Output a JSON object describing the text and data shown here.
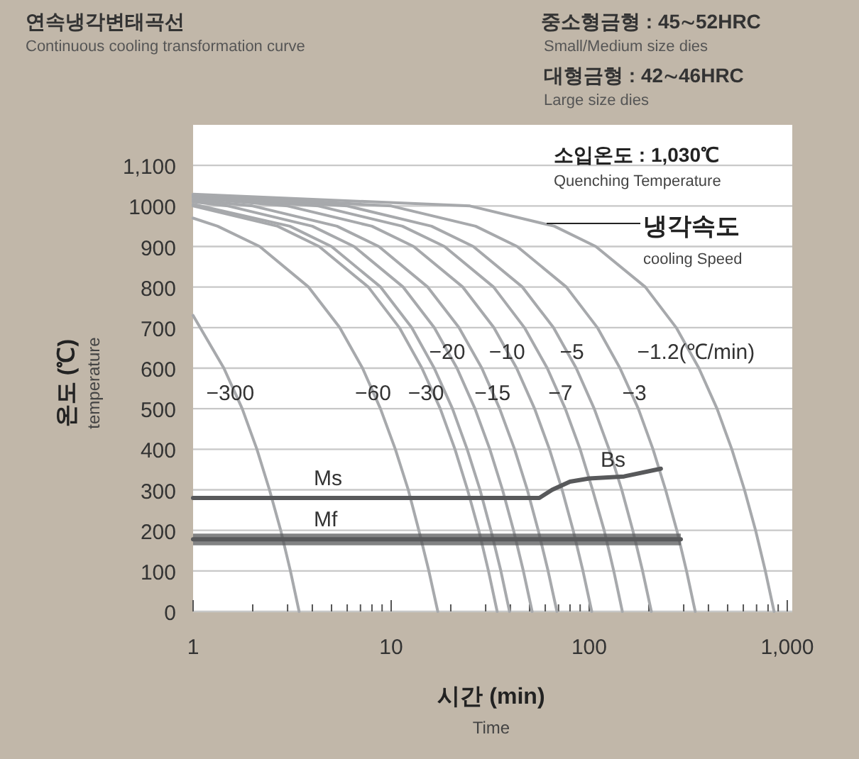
{
  "chart_data": {
    "type": "line",
    "title": "연속냉각변태곡선",
    "subtitle": "Continuous cooling transformation curve",
    "xlabel": "시간 (min)",
    "ylabel": "온도 (℃)",
    "log": "x",
    "grid": "y",
    "marker": "none",
    "line_style": "solid",
    "xlim": [
      1,
      1060
    ],
    "ylim": [
      0,
      1200
    ],
    "xticks": [
      1,
      {
        "value": 2,
        "label": null
      },
      {
        "value": 3,
        "label": null
      },
      {
        "value": 4,
        "label": null
      },
      {
        "value": 5,
        "label": null
      },
      {
        "value": 6,
        "label": null
      },
      {
        "value": 7,
        "label": null
      },
      {
        "value": 8,
        "label": null
      },
      {
        "value": 9,
        "label": null
      },
      10,
      {
        "value": 20,
        "label": null
      },
      {
        "value": 30,
        "label": null
      },
      {
        "value": 40,
        "label": null
      },
      {
        "value": 50,
        "label": null
      },
      {
        "value": 60,
        "label": null
      },
      {
        "value": 70,
        "label": null
      },
      {
        "value": 80,
        "label": null
      },
      {
        "value": 90,
        "label": null
      },
      100,
      {
        "value": 200,
        "label": null
      },
      {
        "value": 300,
        "label": null
      },
      {
        "value": 400,
        "label": null
      },
      {
        "value": 500,
        "label": null
      },
      {
        "value": 600,
        "label": null
      },
      {
        "value": 700,
        "label": null
      },
      {
        "value": 800,
        "label": null
      },
      {
        "value": 900,
        "label": null
      },
      {
        "value": 1000,
        "label": "1,000"
      }
    ],
    "yticks": [
      0,
      100,
      200,
      300,
      400,
      500,
      600,
      700,
      800,
      900,
      1000,
      {
        "value": 1100,
        "label": "1,100"
      }
    ],
    "series": [
      {
        "color": "#a7a9ac",
        "x": [
          1,
          1.43,
          1.77,
          2.1,
          2.43,
          2.77,
          3.1,
          3.43
        ],
        "values": [
          730,
          600,
          500,
          400,
          300,
          200,
          100,
          0
        ]
      },
      {
        "color": "#a7a9ac",
        "x": [
          1,
          1.33,
          2.17,
          3.83,
          5.5,
          7.17,
          8.83,
          10.5,
          12.2,
          13.8,
          15.5,
          17.2
        ],
        "values": [
          970,
          950,
          900,
          800,
          700,
          600,
          500,
          400,
          300,
          200,
          100,
          0
        ]
      },
      {
        "color": "#a7a9ac",
        "x": [
          1,
          2.67,
          4.33,
          7.67,
          11,
          14.3,
          17.7,
          21,
          24.3,
          27.7,
          31,
          34.3
        ],
        "values": [
          1000,
          950,
          900,
          800,
          700,
          600,
          500,
          400,
          300,
          200,
          100,
          0
        ]
      },
      {
        "color": "#a7a9ac",
        "x": [
          1,
          3.08,
          5,
          8.85,
          12.7,
          16.5,
          20.4,
          24.2,
          28.1,
          31.9,
          35.8,
          39.6
        ],
        "values": [
          1004,
          950,
          900,
          800,
          700,
          600,
          500,
          400,
          300,
          200,
          100,
          0
        ]
      },
      {
        "color": "#a7a9ac",
        "x": [
          1,
          1.5,
          4,
          6.5,
          11.5,
          16.5,
          21.5,
          26.5,
          31.5,
          36.5,
          41.5,
          46.5,
          51.5
        ],
        "values": [
          1010,
          1000,
          950,
          900,
          800,
          700,
          600,
          500,
          400,
          300,
          200,
          100,
          0
        ]
      },
      {
        "color": "#a7a9ac",
        "x": [
          1,
          2,
          5.33,
          8.67,
          15.3,
          22,
          28.7,
          35.3,
          42,
          48.7,
          55.3,
          62,
          68.7
        ],
        "values": [
          1015,
          1000,
          950,
          900,
          800,
          700,
          600,
          500,
          400,
          300,
          200,
          100,
          0
        ]
      },
      {
        "color": "#a7a9ac",
        "x": [
          1,
          3,
          8,
          13,
          23,
          33,
          43,
          53,
          63,
          73,
          83,
          93,
          103
        ],
        "values": [
          1020,
          1000,
          950,
          900,
          800,
          700,
          600,
          500,
          400,
          300,
          200,
          100,
          0
        ]
      },
      {
        "color": "#a7a9ac",
        "x": [
          1,
          4.29,
          11.4,
          18.6,
          32.9,
          47.1,
          61.4,
          75.7,
          90,
          104,
          119,
          133,
          147
        ],
        "values": [
          1023,
          1000,
          950,
          900,
          800,
          700,
          600,
          500,
          400,
          300,
          200,
          100,
          0
        ]
      },
      {
        "color": "#a7a9ac",
        "x": [
          1,
          6,
          16,
          26,
          46,
          66,
          86,
          106,
          126,
          146,
          166,
          186,
          206
        ],
        "values": [
          1025,
          1000,
          950,
          900,
          800,
          700,
          600,
          500,
          400,
          300,
          200,
          100,
          0
        ]
      },
      {
        "color": "#a7a9ac",
        "x": [
          1,
          10,
          26.7,
          43.3,
          76.7,
          110,
          143,
          177,
          210,
          243,
          277,
          310,
          343
        ],
        "values": [
          1027,
          1000,
          950,
          900,
          800,
          700,
          600,
          500,
          400,
          300,
          200,
          100,
          0
        ]
      },
      {
        "color": "#a7a9ac",
        "x": [
          1,
          25,
          66.7,
          108,
          192,
          275,
          358,
          442,
          525,
          608,
          692,
          775,
          858
        ],
        "values": [
          1029,
          1000,
          950,
          900,
          800,
          700,
          600,
          500,
          400,
          300,
          200,
          100,
          0
        ]
      },
      {
        "color": "#58595b",
        "x": [
          1,
          56,
          65,
          80,
          100,
          150,
          230
        ],
        "values": [
          280,
          280,
          300,
          320,
          328,
          333,
          352
        ]
      },
      {
        "color": "#58595b",
        "x": [
          1,
          290
        ],
        "values": [
          178,
          178
        ],
        "lower": [
          163,
          163
        ],
        "upper": [
          192,
          192
        ]
      }
    ],
    "annotations": [
      "중소형금형 : 45∼52HRC",
      "Small/Medium size dies",
      "대형금형 : 42∼46HRC",
      "Large size dies",
      "소입온도 : 1,030℃",
      "Quenching Temperature",
      {
        "text": "냉각속도",
        "x": 61,
        "y": 957
      },
      "cooling Speed",
      "temperature",
      "Time",
      "Ms",
      "Mf",
      {
        "text": "−300",
        "x": 1.54,
        "y": 543
      },
      {
        "text": "−60",
        "x": 8.1,
        "y": 543
      },
      {
        "text": "−30",
        "x": 15,
        "y": 543
      },
      {
        "text": "−20",
        "x": 19.2,
        "y": 644
      },
      {
        "text": "−15",
        "x": 32.5,
        "y": 543
      },
      {
        "text": "−10",
        "x": 38.5,
        "y": 644
      },
      {
        "text": "−7",
        "x": 71.5,
        "y": 543
      },
      {
        "text": "−5",
        "x": 81.8,
        "y": 644
      },
      {
        "text": "−3",
        "x": 169,
        "y": 543
      },
      {
        "text": "−1.2(℃/min)",
        "x": 346,
        "y": 644
      },
      {
        "text": "Bs",
        "x": 132,
        "y": 377
      }
    ]
  }
}
